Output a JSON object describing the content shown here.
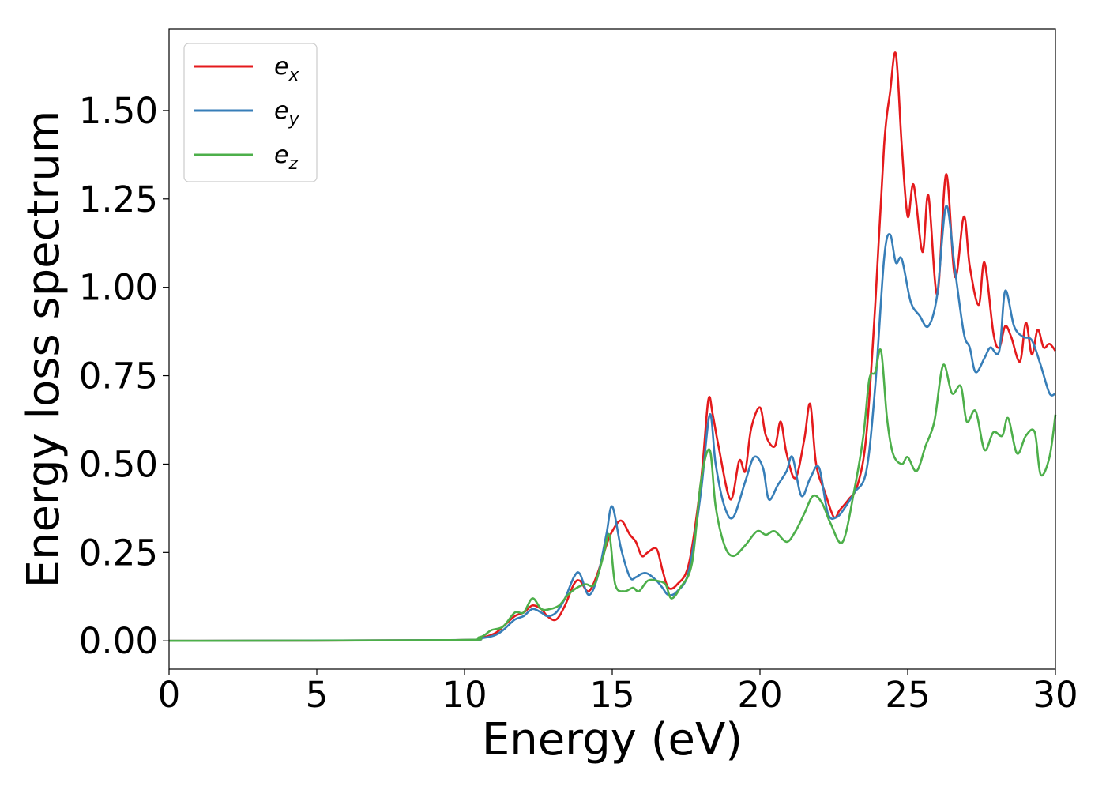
{
  "chart_data": {
    "type": "line",
    "title": "",
    "xlabel": "Energy (eV)",
    "ylabel": "Energy loss spectrum",
    "xlim": [
      0,
      30
    ],
    "ylim": [
      -0.08,
      1.73
    ],
    "xticks": [
      0,
      5,
      10,
      15,
      20,
      25,
      30
    ],
    "xtick_labels": [
      "0",
      "5",
      "10",
      "15",
      "20",
      "25",
      "30"
    ],
    "yticks": [
      0.0,
      0.25,
      0.5,
      0.75,
      1.0,
      1.25,
      1.5
    ],
    "ytick_labels": [
      "0.00",
      "0.25",
      "0.50",
      "0.75",
      "1.00",
      "1.25",
      "1.50"
    ],
    "grid": false,
    "legend_position": "top-left",
    "series": [
      {
        "name": "e_x",
        "label_main": "e",
        "label_sub": "x",
        "color": "#e41a1c",
        "x": [
          0,
          9.5,
          10.5,
          11,
          11.3,
          11.7,
          12,
          12.3,
          12.6,
          12.8,
          13.1,
          13.4,
          13.7,
          13.9,
          14.2,
          14.5,
          14.8,
          15.0,
          15.3,
          15.6,
          15.8,
          16.0,
          16.2,
          16.5,
          16.7,
          16.9,
          17.2,
          17.6,
          18.0,
          18.25,
          18.4,
          18.6,
          19.0,
          19.3,
          19.5,
          19.7,
          20.0,
          20.2,
          20.5,
          20.7,
          20.9,
          21.2,
          21.5,
          21.7,
          21.9,
          22.2,
          22.5,
          22.7,
          23.0,
          23.3,
          23.6,
          23.9,
          24.2,
          24.4,
          24.6,
          24.8,
          25.0,
          25.2,
          25.5,
          25.7,
          26.0,
          26.3,
          26.6,
          26.9,
          27.1,
          27.4,
          27.6,
          27.9,
          28.1,
          28.3,
          28.5,
          28.8,
          29.0,
          29.2,
          29.4,
          29.6,
          29.8,
          30.0
        ],
        "y": [
          0.0,
          0.002,
          0.008,
          0.02,
          0.04,
          0.07,
          0.08,
          0.1,
          0.09,
          0.07,
          0.06,
          0.1,
          0.16,
          0.17,
          0.14,
          0.19,
          0.27,
          0.31,
          0.34,
          0.3,
          0.28,
          0.24,
          0.25,
          0.26,
          0.2,
          0.15,
          0.16,
          0.22,
          0.45,
          0.68,
          0.64,
          0.55,
          0.4,
          0.51,
          0.48,
          0.6,
          0.66,
          0.58,
          0.55,
          0.62,
          0.53,
          0.46,
          0.57,
          0.67,
          0.5,
          0.42,
          0.35,
          0.37,
          0.4,
          0.44,
          0.58,
          0.95,
          1.4,
          1.55,
          1.66,
          1.4,
          1.2,
          1.29,
          1.1,
          1.26,
          0.98,
          1.32,
          1.03,
          1.2,
          1.06,
          0.95,
          1.07,
          0.87,
          0.83,
          0.89,
          0.86,
          0.79,
          0.9,
          0.81,
          0.88,
          0.83,
          0.84,
          0.82
        ]
      },
      {
        "name": "e_y",
        "label_main": "e",
        "label_sub": "y",
        "color": "#377eb8",
        "x": [
          0,
          9.5,
          10.5,
          11,
          11.3,
          11.7,
          12,
          12.3,
          12.6,
          12.8,
          13.1,
          13.4,
          13.7,
          13.9,
          14.2,
          14.5,
          14.8,
          15.0,
          15.3,
          15.6,
          15.8,
          16.0,
          16.2,
          16.5,
          16.7,
          16.9,
          17.2,
          17.6,
          18.0,
          18.3,
          18.5,
          18.8,
          19.1,
          19.5,
          19.8,
          20.1,
          20.3,
          20.6,
          20.9,
          21.1,
          21.4,
          21.7,
          22.0,
          22.3,
          22.6,
          22.9,
          23.2,
          23.6,
          23.9,
          24.2,
          24.4,
          24.6,
          24.8,
          25.1,
          25.4,
          25.7,
          26.0,
          26.3,
          26.6,
          26.9,
          27.1,
          27.3,
          27.6,
          27.8,
          28.1,
          28.3,
          28.6,
          28.9,
          29.2,
          29.5,
          29.8,
          30.0
        ],
        "y": [
          0.0,
          0.002,
          0.007,
          0.015,
          0.03,
          0.06,
          0.07,
          0.09,
          0.08,
          0.07,
          0.08,
          0.12,
          0.18,
          0.19,
          0.13,
          0.18,
          0.3,
          0.38,
          0.26,
          0.18,
          0.18,
          0.19,
          0.19,
          0.17,
          0.15,
          0.13,
          0.14,
          0.2,
          0.42,
          0.64,
          0.5,
          0.38,
          0.35,
          0.45,
          0.52,
          0.49,
          0.4,
          0.44,
          0.48,
          0.52,
          0.41,
          0.46,
          0.49,
          0.36,
          0.35,
          0.38,
          0.42,
          0.48,
          0.72,
          1.08,
          1.15,
          1.07,
          1.08,
          0.96,
          0.92,
          0.89,
          0.98,
          1.23,
          1.05,
          0.87,
          0.83,
          0.76,
          0.8,
          0.83,
          0.82,
          0.99,
          0.89,
          0.86,
          0.85,
          0.78,
          0.7,
          0.7
        ]
      },
      {
        "name": "e_z",
        "label_main": "e",
        "label_sub": "z",
        "color": "#4daf4a",
        "x": [
          0,
          9.5,
          10.5,
          10.9,
          11.3,
          11.7,
          12.0,
          12.3,
          12.6,
          12.9,
          13.2,
          13.5,
          13.8,
          14.1,
          14.4,
          14.7,
          14.9,
          15.1,
          15.4,
          15.7,
          15.9,
          16.2,
          16.5,
          16.8,
          17.0,
          17.3,
          17.7,
          18.0,
          18.3,
          18.5,
          18.8,
          19.1,
          19.5,
          19.9,
          20.2,
          20.5,
          20.9,
          21.2,
          21.5,
          21.8,
          22.1,
          22.4,
          22.8,
          23.2,
          23.5,
          23.7,
          23.9,
          24.1,
          24.3,
          24.5,
          24.8,
          25.0,
          25.3,
          25.6,
          25.9,
          26.2,
          26.5,
          26.8,
          27.0,
          27.3,
          27.6,
          27.9,
          28.2,
          28.4,
          28.7,
          29.0,
          29.3,
          29.5,
          29.8,
          30.0
        ],
        "y": [
          0.0,
          0.002,
          0.01,
          0.03,
          0.04,
          0.08,
          0.08,
          0.12,
          0.09,
          0.09,
          0.1,
          0.13,
          0.15,
          0.16,
          0.16,
          0.24,
          0.3,
          0.16,
          0.14,
          0.15,
          0.14,
          0.17,
          0.17,
          0.16,
          0.12,
          0.15,
          0.22,
          0.45,
          0.54,
          0.38,
          0.27,
          0.24,
          0.27,
          0.31,
          0.3,
          0.31,
          0.28,
          0.31,
          0.36,
          0.41,
          0.39,
          0.33,
          0.28,
          0.43,
          0.58,
          0.74,
          0.76,
          0.82,
          0.63,
          0.53,
          0.5,
          0.52,
          0.48,
          0.55,
          0.62,
          0.78,
          0.7,
          0.72,
          0.62,
          0.65,
          0.54,
          0.59,
          0.58,
          0.63,
          0.53,
          0.58,
          0.59,
          0.47,
          0.52,
          0.64
        ]
      }
    ]
  }
}
